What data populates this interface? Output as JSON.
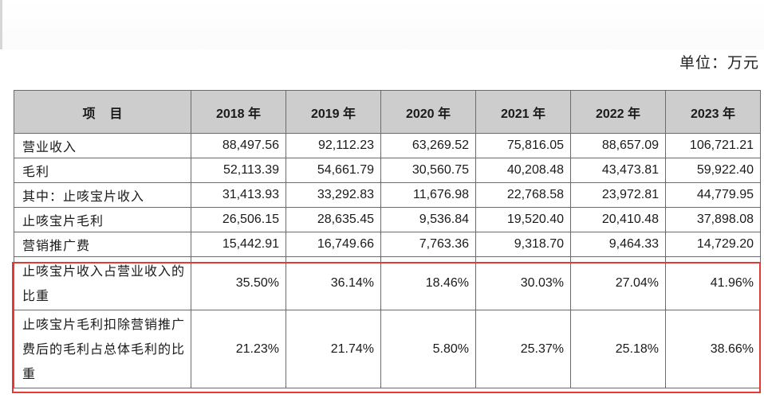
{
  "unit_label": "单位：万元",
  "header": {
    "item": "项目",
    "years": [
      "2018 年",
      "2019 年",
      "2020 年",
      "2021 年",
      "2022 年",
      "2023 年"
    ]
  },
  "rows": [
    {
      "label": "营业收入",
      "values": [
        "88,497.56",
        "92,112.23",
        "63,269.52",
        "75,816.05",
        "88,657.09",
        "106,721.21"
      ]
    },
    {
      "label": "毛利",
      "values": [
        "52,113.39",
        "54,661.79",
        "30,560.75",
        "40,208.48",
        "43,473.81",
        "59,922.40"
      ]
    },
    {
      "label": "其中：止咳宝片收入",
      "values": [
        "31,413.93",
        "33,292.83",
        "11,676.98",
        "22,768.58",
        "23,972.81",
        "44,779.95"
      ]
    },
    {
      "label": "止咳宝片毛利",
      "values": [
        "26,506.15",
        "28,635.45",
        "9,536.84",
        "19,520.40",
        "20,410.48",
        "37,898.08"
      ]
    },
    {
      "label": "营销推广费",
      "values": [
        "15,442.91",
        "16,749.66",
        "7,763.36",
        "9,318.70",
        "9,464.33",
        "14,729.20"
      ]
    },
    {
      "label": "止咳宝片收入占营业收入的比重",
      "values": [
        "35.50%",
        "36.14%",
        "18.46%",
        "30.03%",
        "27.04%",
        "41.96%"
      ]
    },
    {
      "label": "止咳宝片毛利扣除营销推广费后的毛利占总体毛利的比重",
      "values": [
        "21.23%",
        "21.74%",
        "5.80%",
        "25.37%",
        "25.18%",
        "38.66%"
      ]
    }
  ],
  "highlight_color": "#e53935"
}
